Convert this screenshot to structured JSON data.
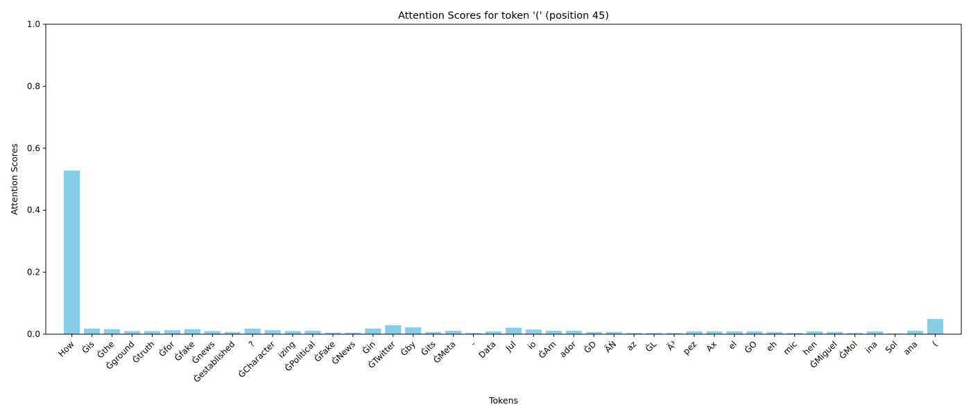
{
  "chart_data": {
    "type": "bar",
    "title": "Attention Scores for token '(' (position 45)",
    "xlabel": "Tokens",
    "ylabel": "Attention Scores",
    "ylim": [
      0,
      1
    ],
    "yticks": [
      "0.0",
      "0.2",
      "0.4",
      "0.6",
      "0.8",
      "1.0"
    ],
    "bar_color": "#87ceeb",
    "grid": false,
    "categories": [
      "How",
      "Ġis",
      "Ġthe",
      "Ġground",
      "Ġtruth",
      "Ġfor",
      "Ġfake",
      "Ġnews",
      "Ġestablished",
      "?",
      "ĠCharacter",
      "izing",
      "ĠPolitical",
      "ĠFake",
      "ĠNews",
      "Ġin",
      "ĠTwitter",
      "Ġby",
      "Ġits",
      "ĠMeta",
      "-",
      "Data",
      "Jul",
      "io",
      "ĠAm",
      "ador",
      "ĠD",
      "ÃŃ",
      "az",
      "ĠL",
      "Ã³",
      "pez",
      "Ax",
      "el",
      "ĠO",
      "eh",
      "mic",
      "hen",
      "ĠMiguel",
      "ĠMol",
      "ina",
      "Sol",
      "ana",
      "("
    ],
    "values": [
      0.528,
      0.018,
      0.016,
      0.01,
      0.01,
      0.013,
      0.016,
      0.01,
      0.007,
      0.018,
      0.013,
      0.01,
      0.011,
      0.005,
      0.005,
      0.018,
      0.029,
      0.022,
      0.007,
      0.011,
      0.004,
      0.009,
      0.021,
      0.015,
      0.011,
      0.011,
      0.007,
      0.007,
      0.004,
      0.004,
      0.004,
      0.009,
      0.009,
      0.009,
      0.009,
      0.007,
      0.004,
      0.009,
      0.007,
      0.004,
      0.009,
      0.002,
      0.011,
      0.049
    ]
  }
}
